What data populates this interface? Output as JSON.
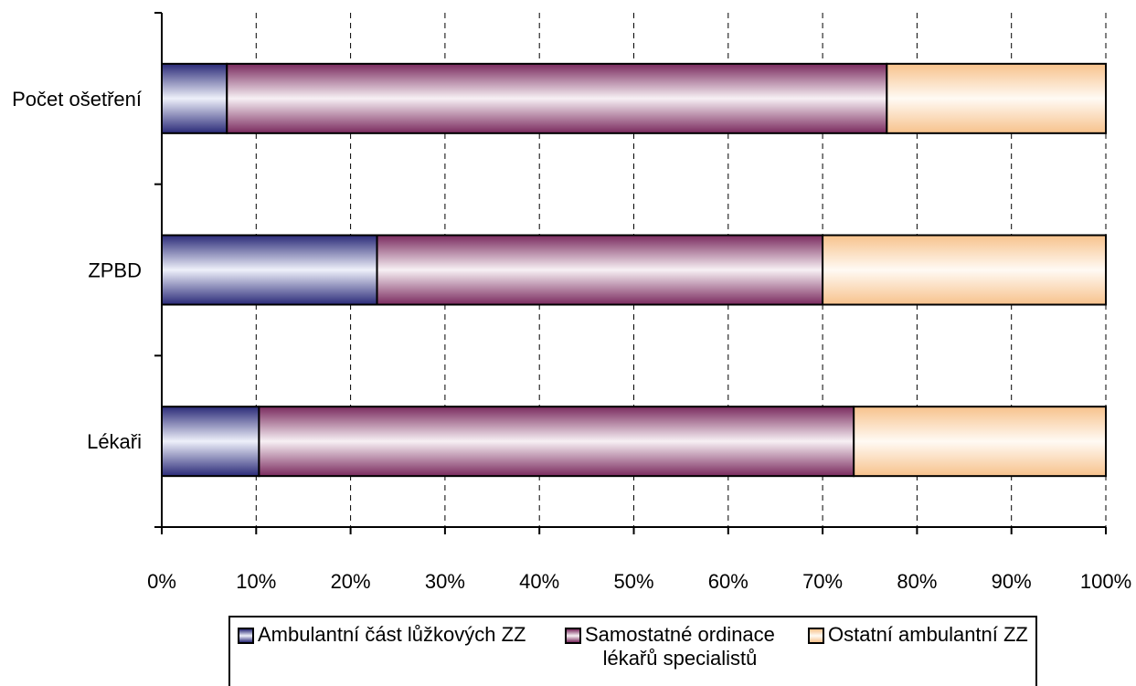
{
  "chart_data": {
    "type": "bar",
    "orientation": "horizontal",
    "stacked": "percent",
    "categories": [
      "Počet ošetření",
      "ZPBD",
      "Lékaři"
    ],
    "series": [
      {
        "name": "Ambulantní část lůžkových ZZ",
        "values": [
          6.9,
          22.8,
          10.3
        ],
        "color": "#3a3a8c"
      },
      {
        "name": "Samostatné ordinace lékařů specialistů",
        "values": [
          69.9,
          47.2,
          63.0
        ],
        "color": "#8a3a6a"
      },
      {
        "name": "Ostatní ambulantní ZZ",
        "values": [
          23.2,
          30.0,
          26.7
        ],
        "color": "#f6c89a"
      }
    ],
    "xlim": [
      0,
      100
    ],
    "xticks": [
      "0%",
      "10%",
      "20%",
      "30%",
      "40%",
      "50%",
      "60%",
      "70%",
      "80%",
      "90%",
      "100%"
    ],
    "grid": "vertical dashed",
    "legend_position": "bottom"
  },
  "legend": [
    {
      "line1": "Ambulantní část lůžkových ZZ",
      "line2": ""
    },
    {
      "line1": "Samostatné ordinace",
      "line2": "lékařů specialistů"
    },
    {
      "line1": "Ostatní ambulantní ZZ",
      "line2": ""
    }
  ]
}
